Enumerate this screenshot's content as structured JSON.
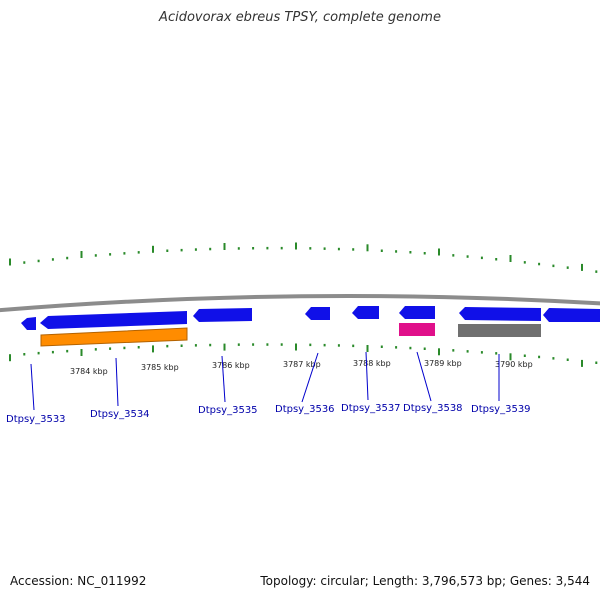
{
  "title": "Acidovorax ebreus TPSY, complete genome",
  "footer": {
    "accession": "Accession: NC_011992",
    "topology": "Topology: circular; Length: 3,796,573 bp; Genes: 3,544"
  },
  "colors": {
    "backbone": "#8c8c8c",
    "gene_blue": "#1010e8",
    "gene_orange": "#ff8c00",
    "gene_pink": "#e0108a",
    "gene_gray": "#707070",
    "tick_green": "#2a8a2a",
    "label_blue": "#0000aa"
  },
  "kbp_labels": [
    {
      "text": "3784 kbp",
      "kbp": 3784
    },
    {
      "text": "3785 kbp",
      "kbp": 3785
    },
    {
      "text": "3786 kbp",
      "kbp": 3786
    },
    {
      "text": "3787 kbp",
      "kbp": 3787
    },
    {
      "text": "3788 kbp",
      "kbp": 3788
    },
    {
      "text": "3789 kbp",
      "kbp": 3789
    },
    {
      "text": "3790 kbp",
      "kbp": 3790
    }
  ],
  "genes": [
    {
      "label": "Dtpsy_3533"
    },
    {
      "label": "Dtpsy_3534"
    },
    {
      "label": "Dtpsy_3535"
    },
    {
      "label": "Dtpsy_3536"
    },
    {
      "label": "Dtpsy_3537"
    },
    {
      "label": "Dtpsy_3538"
    },
    {
      "label": "Dtpsy_3539"
    }
  ]
}
